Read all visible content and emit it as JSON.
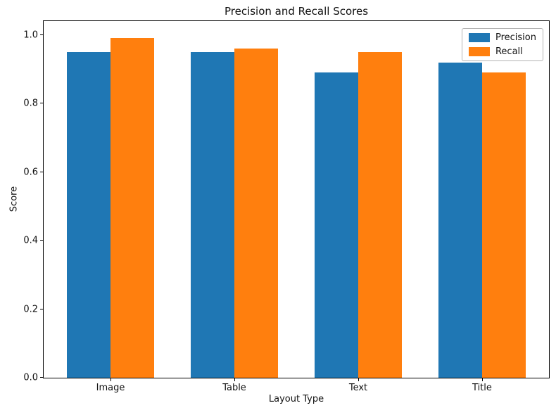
{
  "chart_data": {
    "type": "bar",
    "title": "Precision and Recall Scores",
    "xlabel": "Layout Type",
    "ylabel": "Score",
    "categories": [
      "Image",
      "Table",
      "Text",
      "Title"
    ],
    "series": [
      {
        "name": "Precision",
        "color": "#1f77b4",
        "values": [
          0.95,
          0.95,
          0.89,
          0.92
        ]
      },
      {
        "name": "Recall",
        "color": "#ff7f0e",
        "values": [
          0.99,
          0.96,
          0.95,
          0.89
        ]
      }
    ],
    "bar_width": 0.35,
    "xlim": [
      -0.54,
      3.54
    ],
    "ylim": [
      0,
      1.04
    ],
    "yticks": [
      0.0,
      0.2,
      0.4,
      0.6,
      0.8,
      1.0
    ],
    "grid": false,
    "legend_position": "upper right"
  }
}
